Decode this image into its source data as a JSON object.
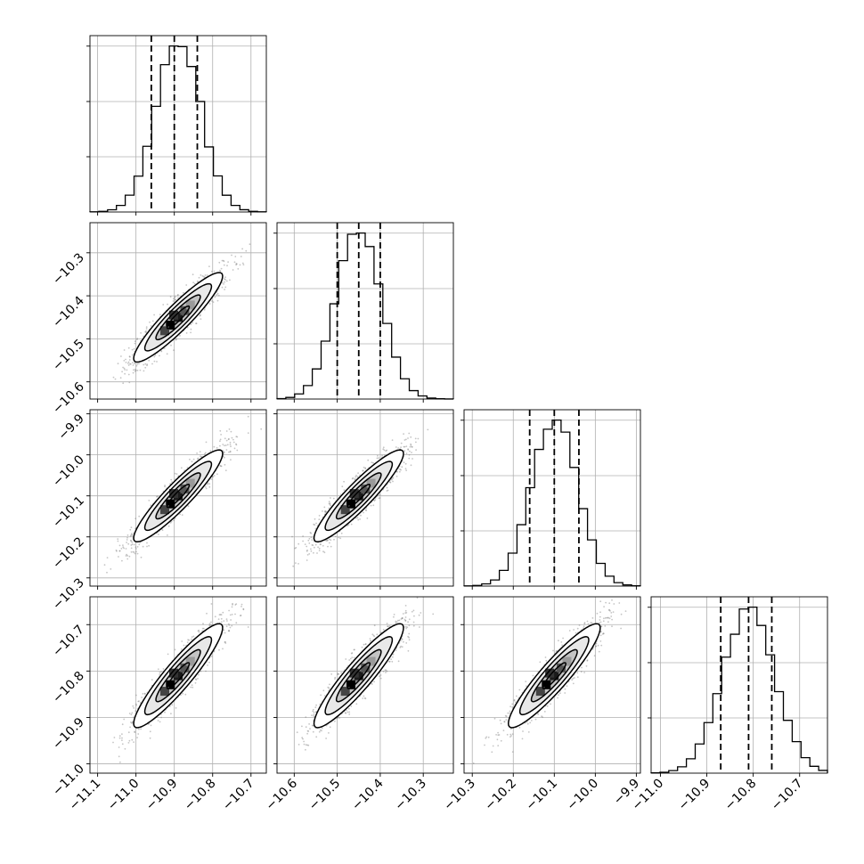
{
  "chart_data": {
    "type": "corner",
    "title": "",
    "parameters": [
      {
        "name": "",
        "mean": -10.89,
        "sd": 0.058,
        "range": [
          -11.12,
          -10.66
        ],
        "ticks": [
          -11.1,
          -11.0,
          -10.9,
          -10.8,
          -10.7
        ],
        "tick_labels": [
          "−11.1",
          "−11.0",
          "−10.9",
          "−10.8",
          "−10.7"
        ],
        "quantiles": [
          -10.96,
          -10.9,
          -10.84
        ]
      },
      {
        "name": "",
        "mean": -10.45,
        "sd": 0.052,
        "range": [
          -10.64,
          -10.23
        ],
        "ticks": [
          -10.6,
          -10.5,
          -10.4,
          -10.3
        ],
        "tick_labels": [
          "−10.6",
          "−10.5",
          "−10.4",
          "−10.3"
        ],
        "quantiles": [
          -10.5,
          -10.45,
          -10.4
        ]
      },
      {
        "name": "",
        "mean": -10.1,
        "sd": 0.056,
        "range": [
          -10.32,
          -9.89
        ],
        "ticks": [
          -10.3,
          -10.2,
          -10.1,
          -10.0,
          -9.9
        ],
        "tick_labels": [
          "−10.3",
          "−10.2",
          "−10.1",
          "−10.0",
          "−9.9"
        ],
        "quantiles": [
          -10.16,
          -10.1,
          -10.04
        ]
      },
      {
        "name": "",
        "mean": -10.81,
        "sd": 0.056,
        "range": [
          -11.02,
          -10.64
        ],
        "ticks": [
          -11.0,
          -10.9,
          -10.8,
          -10.7
        ],
        "tick_labels": [
          "−11.0",
          "−10.9",
          "−10.8",
          "−10.7"
        ],
        "quantiles": [
          -10.87,
          -10.81,
          -10.76
        ]
      }
    ],
    "correlation": 0.92,
    "histogram_bins": 20,
    "contour_levels_sigma": [
      0.5,
      1.0,
      1.5,
      2.0
    ],
    "grid": true,
    "colors": {
      "points": "#7f7f7f",
      "lines": "#000000",
      "grid": "#b0b0b0"
    }
  }
}
